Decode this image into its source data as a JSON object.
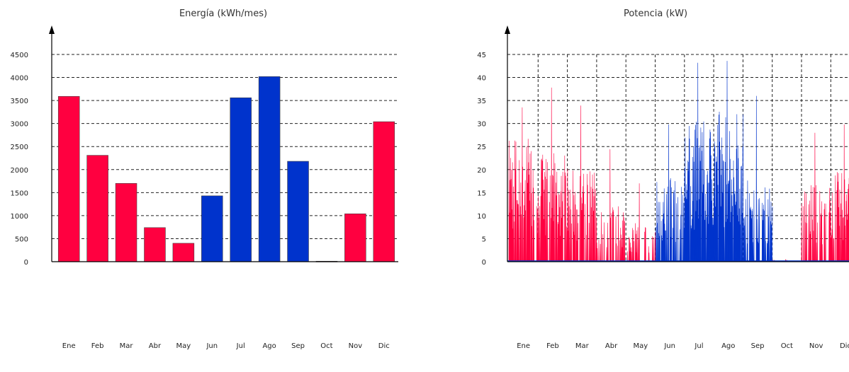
{
  "chart_data": [
    {
      "type": "bar",
      "title": "Energía (kWh/mes)",
      "xlabel": "",
      "ylabel": "",
      "categories": [
        "Ene",
        "Feb",
        "Mar",
        "Abr",
        "May",
        "Jun",
        "Jul",
        "Ago",
        "Sep",
        "Oct",
        "Nov",
        "Dic"
      ],
      "values": [
        3590,
        2310,
        1700,
        740,
        400,
        1430,
        3560,
        4020,
        2180,
        10,
        1040,
        3040
      ],
      "bar_colors": [
        "#ff0040",
        "#ff0040",
        "#ff0040",
        "#ff0040",
        "#ff0040",
        "#0033cc",
        "#0033cc",
        "#0033cc",
        "#0033cc",
        "#ff0040",
        "#ff0040",
        "#ff0040"
      ],
      "ylim": [
        0,
        4700
      ],
      "yticks": [
        0,
        500,
        1000,
        1500,
        2000,
        2500,
        3000,
        3500,
        4000,
        4500
      ],
      "grid": "horizontal dashed",
      "legend": "none"
    },
    {
      "type": "area",
      "title": "Potencia (kW)",
      "xlabel": "",
      "ylabel": "",
      "categories": [
        "Ene",
        "Feb",
        "Mar",
        "Abr",
        "May",
        "Jun",
        "Jul",
        "Ago",
        "Sep",
        "Oct",
        "Nov",
        "Dic"
      ],
      "monthly_peak": [
        33.5,
        37.8,
        33.9,
        24.4,
        17.0,
        29.8,
        43.2,
        43.6,
        36.0,
        0.5,
        28.0,
        29.8
      ],
      "monthly_mean_amplitude": [
        20,
        17,
        15,
        9,
        6,
        13,
        22,
        24,
        13,
        0.3,
        12,
        14
      ],
      "active_fraction": [
        0.85,
        0.8,
        0.75,
        0.55,
        0.45,
        0.6,
        0.9,
        0.95,
        0.65,
        0.05,
        0.55,
        0.8
      ],
      "series_colors": [
        "#ff0040",
        "#ff0040",
        "#ff0040",
        "#ff0040",
        "#ff0040",
        "#0033cc",
        "#0033cc",
        "#0033cc",
        "#0033cc",
        "#ff0040",
        "#ff0040",
        "#ff0040"
      ],
      "ylim": [
        0,
        47
      ],
      "yticks": [
        0,
        5,
        10,
        15,
        20,
        25,
        30,
        35,
        40,
        45
      ],
      "grid": "horizontal and vertical dashed",
      "legend": "none"
    }
  ]
}
